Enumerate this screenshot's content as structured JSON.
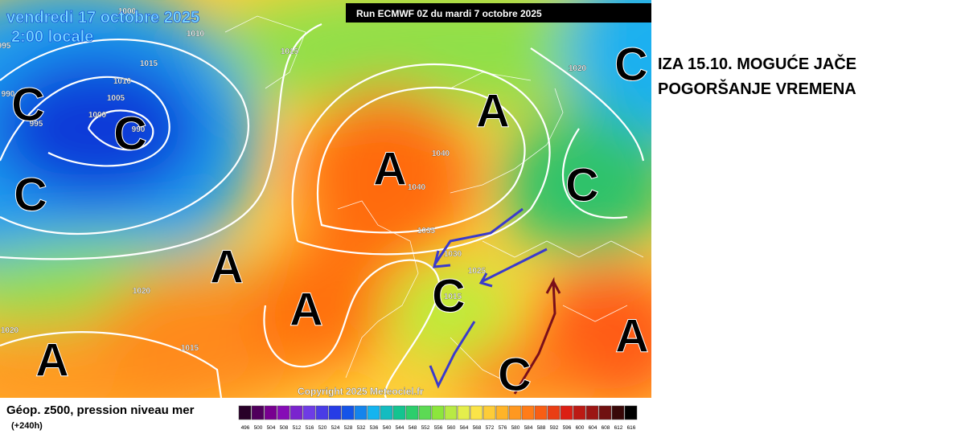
{
  "map": {
    "date": "vendredi 17 octobre 2025",
    "time": "2:00 locale",
    "run": "Run ECMWF 0Z du mardi 7 octobre 2025",
    "copyright": "Copyright 2025 Meteociel.fr",
    "pressure_labels": [
      "1000",
      "1010",
      "1015",
      "1015",
      "1010",
      "1005",
      "1000",
      "995",
      "990",
      "990",
      "995",
      "1040",
      "1040",
      "1035",
      "1030",
      "1025",
      "1020",
      "1015",
      "1020",
      "1020",
      "1020",
      "1015"
    ],
    "centers": [
      "C",
      "C",
      "C",
      "A",
      "A",
      "C",
      "C",
      "A",
      "A",
      "C",
      "A",
      "A",
      "C"
    ]
  },
  "annotation": {
    "lines": [
      "IZA 15.10. MOGUĆE JAČE",
      "POGORŠANJE VREMENA"
    ]
  },
  "legend": {
    "title": "Géop. z500, pression niveau mer",
    "lead": "(+240h)",
    "scale": [
      496,
      500,
      504,
      508,
      512,
      516,
      520,
      524,
      528,
      532,
      536,
      540,
      544,
      548,
      552,
      556,
      560,
      564,
      568,
      572,
      576,
      580,
      584,
      588,
      592,
      596,
      600,
      604,
      608,
      612,
      616
    ]
  }
}
